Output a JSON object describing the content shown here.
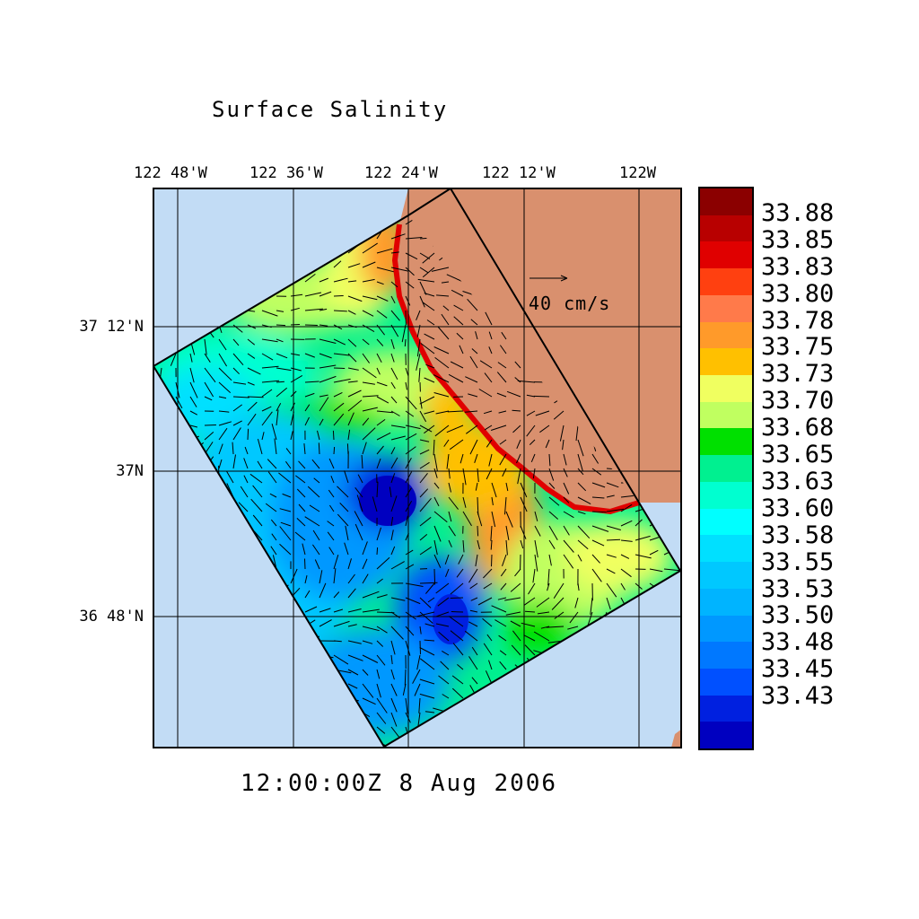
{
  "title": "Surface Salinity",
  "timestamp": "12:00:00Z   8 Aug 2006",
  "lon_labels": [
    "122 48'W",
    "122 36'W",
    "122 24'W",
    "122 12'W",
    "122W"
  ],
  "lat_labels": [
    "37 12'N",
    "37N",
    "36 48'N"
  ],
  "velocity_scale": {
    "label": "40 cm/s"
  },
  "colors": {
    "land": "#d9906e",
    "ocean": "#c2dcf5",
    "grid": "#000000"
  },
  "colorbar": {
    "swatches": [
      "#8b0000",
      "#b80000",
      "#e00000",
      "#ff4010",
      "#ff7a4a",
      "#ff9a2a",
      "#ffc000",
      "#f0ff60",
      "#c0ff60",
      "#00e000",
      "#00f090",
      "#00ffd0",
      "#00ffff",
      "#00e0ff",
      "#00c8ff",
      "#00b4ff",
      "#0098ff",
      "#0078ff",
      "#0050ff",
      "#0020e0",
      "#0000c0"
    ],
    "labels": [
      "33.88",
      "33.85",
      "33.83",
      "33.80",
      "33.78",
      "33.75",
      "33.73",
      "33.70",
      "33.68",
      "33.65",
      "33.63",
      "33.60",
      "33.58",
      "33.55",
      "33.53",
      "33.50",
      "33.48",
      "33.45",
      "33.43"
    ]
  }
}
